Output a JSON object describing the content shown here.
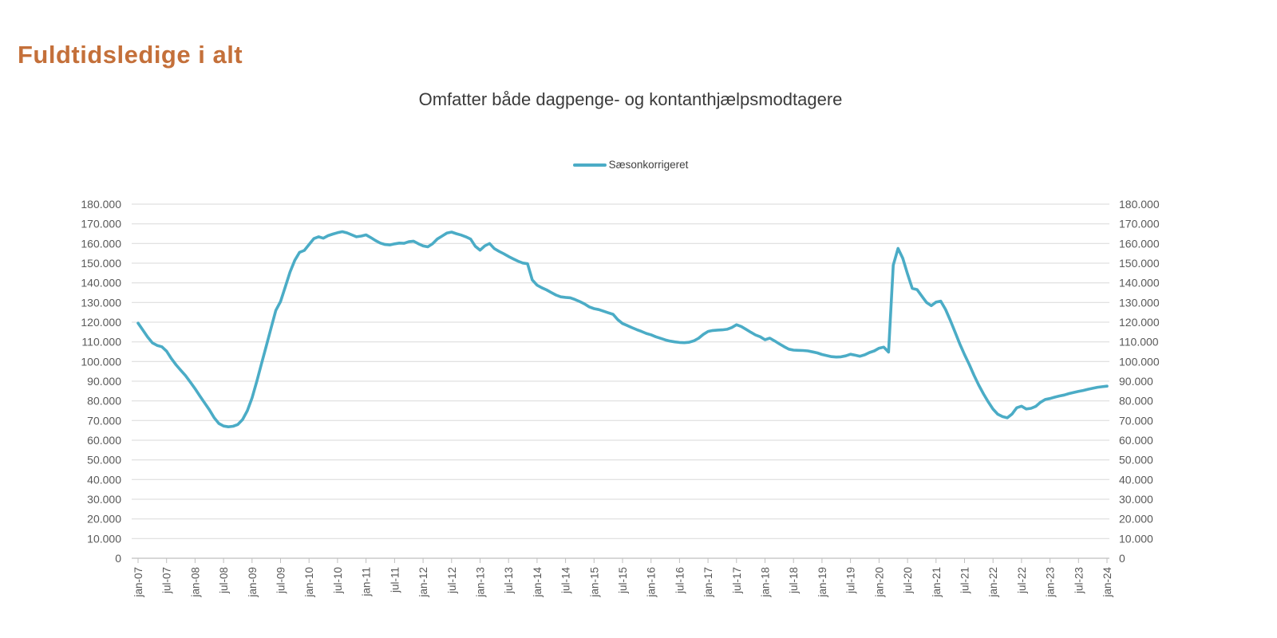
{
  "header": {
    "title": "Fuldtidsledige i alt",
    "title_color": "#c4703a"
  },
  "chart_data": {
    "type": "line",
    "title": "Omfatter både dagpenge- og kontanthjælpsmodtagere",
    "legend": {
      "position": "top-center",
      "entries": [
        {
          "label": "Sæsonkorrigeret",
          "color": "#4bacc6"
        }
      ]
    },
    "x_interval": "monthly",
    "x_range": [
      "jan-07",
      "jan-24"
    ],
    "x_tick_labels": [
      "jan-07",
      "jul-07",
      "jan-08",
      "jul-08",
      "jan-09",
      "jul-09",
      "jan-10",
      "jul-10",
      "jan-11",
      "jul-11",
      "jan-12",
      "jul-12",
      "jan-13",
      "jul-13",
      "jan-14",
      "jul-14",
      "jan-15",
      "jul-15",
      "jan-16",
      "jul-16",
      "jan-17",
      "jul-17",
      "jan-18",
      "jul-18",
      "jan-19",
      "jul-19",
      "jan-20",
      "jul-20",
      "jan-21",
      "jul-21",
      "jan-22",
      "jul-22",
      "jan-23",
      "jul-23",
      "jan-24"
    ],
    "ylim": [
      0,
      180000
    ],
    "grid": "horizontal",
    "dual_axis": true,
    "y_ticks": {
      "values": [
        0,
        10000,
        20000,
        30000,
        40000,
        50000,
        60000,
        70000,
        80000,
        90000,
        100000,
        110000,
        120000,
        130000,
        140000,
        150000,
        160000,
        170000,
        180000
      ],
      "labels": [
        "0",
        "10.000",
        "20.000",
        "30.000",
        "40.000",
        "50.000",
        "60.000",
        "70.000",
        "80.000",
        "90.000",
        "100.000",
        "110.000",
        "120.000",
        "130.000",
        "140.000",
        "150.000",
        "160.000",
        "170.000",
        "180.000"
      ]
    },
    "colors": {
      "gridline": "#d9d9d9",
      "axis": "#bfbfbf",
      "tick_text": "#595959"
    },
    "series": [
      {
        "name": "Sæsonkorrigeret",
        "color": "#4bacc6",
        "values": [
          119500,
          116000,
          112500,
          109500,
          108200,
          107500,
          105300,
          101500,
          98300,
          95500,
          92800,
          89500,
          86200,
          82500,
          79000,
          75500,
          71500,
          68500,
          67200,
          66800,
          67100,
          68000,
          70500,
          75000,
          81500,
          90000,
          99000,
          108000,
          117000,
          126000,
          130500,
          138000,
          145500,
          151500,
          155500,
          156500,
          159500,
          162500,
          163400,
          162700,
          164000,
          164800,
          165500,
          166000,
          165400,
          164400,
          163400,
          163800,
          164400,
          163000,
          161500,
          160200,
          159500,
          159300,
          159800,
          160200,
          160100,
          160900,
          161200,
          159900,
          158800,
          158300,
          159900,
          162300,
          163800,
          165300,
          165800,
          165000,
          164300,
          163400,
          162300,
          158600,
          156600,
          158800,
          160000,
          157400,
          156000,
          154800,
          153400,
          152200,
          151000,
          150100,
          149700,
          141500,
          138800,
          137500,
          136400,
          135100,
          133800,
          132900,
          132600,
          132400,
          131500,
          130500,
          129300,
          127800,
          126900,
          126400,
          125600,
          124800,
          124000,
          121300,
          119300,
          118300,
          117200,
          116200,
          115300,
          114300,
          113600,
          112600,
          111800,
          111000,
          110400,
          110000,
          109700,
          109600,
          109800,
          110500,
          111800,
          113800,
          115300,
          115800,
          116000,
          116100,
          116400,
          117300,
          118700,
          117800,
          116400,
          114900,
          113500,
          112600,
          111100,
          111900,
          110500,
          109000,
          107600,
          106300,
          105800,
          105700,
          105600,
          105400,
          104900,
          104400,
          103600,
          103000,
          102500,
          102300,
          102400,
          102900,
          103700,
          103200,
          102700,
          103400,
          104600,
          105400,
          106800,
          107300,
          104800,
          149000,
          157500,
          152500,
          144500,
          137200,
          136600,
          133300,
          130000,
          128400,
          130200,
          130700,
          126500,
          121000,
          115000,
          109000,
          103500,
          98500,
          93000,
          88000,
          83500,
          79500,
          75800,
          73200,
          72000,
          71400,
          73300,
          76500,
          77300,
          75900,
          76200,
          77200,
          79300,
          80700,
          81200,
          81900,
          82500,
          83000,
          83700,
          84300,
          84800,
          85300,
          85900,
          86400,
          86900,
          87200,
          87500
        ]
      }
    ]
  }
}
